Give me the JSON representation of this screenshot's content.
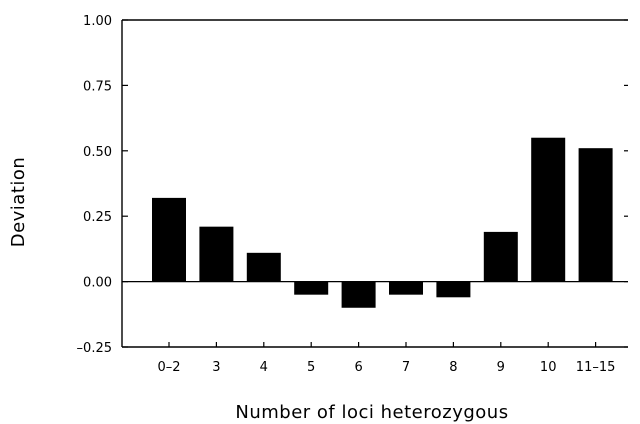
{
  "chart_data": {
    "type": "bar",
    "title": "",
    "xlabel": "Number of loci heterozygous",
    "ylabel": "Deviation",
    "categories": [
      "0–2",
      "3",
      "4",
      "5",
      "6",
      "7",
      "8",
      "9",
      "10",
      "11–15"
    ],
    "values": [
      0.32,
      0.21,
      0.11,
      -0.05,
      -0.1,
      -0.05,
      -0.06,
      0.19,
      0.55,
      0.51
    ],
    "ylim": [
      -0.25,
      1.0
    ],
    "yticks": [
      -0.25,
      0.0,
      0.25,
      0.5,
      0.75,
      1.0
    ],
    "ytick_labels": [
      "–0.25",
      "0.00",
      "0.25",
      "0.50",
      "0.75",
      "1.00"
    ],
    "grid": false,
    "legend": "none",
    "bar_color": "#000000",
    "zero_line": true
  }
}
